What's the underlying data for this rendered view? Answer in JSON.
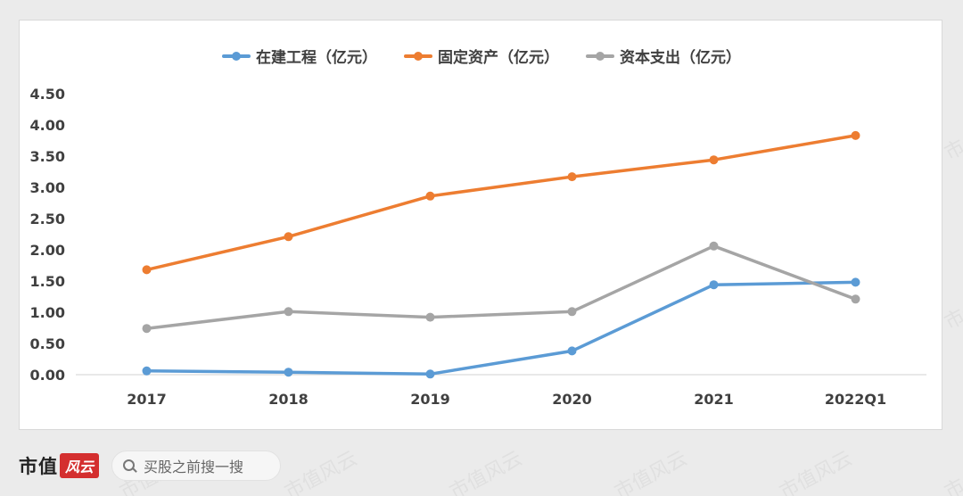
{
  "chart_data": {
    "type": "line",
    "categories": [
      "2017",
      "2018",
      "2019",
      "2020",
      "2021",
      "2022Q1"
    ],
    "ylim": [
      0,
      4.5
    ],
    "yticks": [
      "0.00",
      "0.50",
      "1.00",
      "1.50",
      "2.00",
      "2.50",
      "3.00",
      "3.50",
      "4.00",
      "4.50"
    ],
    "grid": "none",
    "legend_position": "top-center",
    "series": [
      {
        "name": "在建工程（亿元）",
        "color": "#5b9bd5",
        "values": [
          0.06,
          0.04,
          0.01,
          0.38,
          1.44,
          1.48
        ]
      },
      {
        "name": "固定资产（亿元）",
        "color": "#ed7d31",
        "values": [
          1.68,
          2.21,
          2.86,
          3.17,
          3.44,
          3.83
        ]
      },
      {
        "name": "资本支出（亿元）",
        "color": "#a5a5a5",
        "values": [
          0.74,
          1.01,
          0.92,
          1.01,
          2.06,
          1.21
        ]
      }
    ]
  },
  "watermark_text": "市值风云",
  "footer": {
    "brand_text": "市值",
    "brand_mark": "风云",
    "search_placeholder": "买股之前搜一搜",
    "search_icon": "search-icon"
  }
}
